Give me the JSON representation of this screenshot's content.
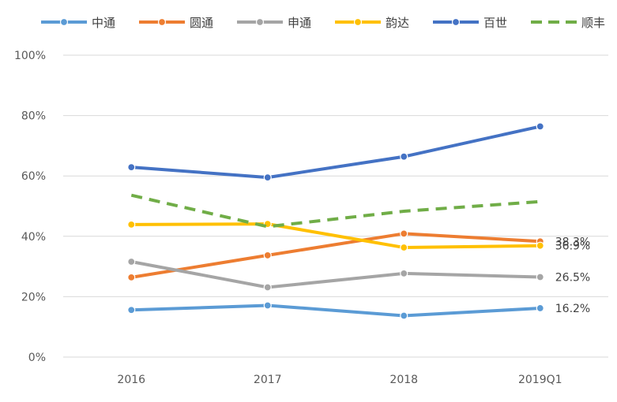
{
  "chart_data": {
    "type": "line",
    "title": "",
    "xlabel": "",
    "ylabel": "",
    "categories": [
      "2016",
      "2017",
      "2018",
      "2019Q1"
    ],
    "y_ticks": [
      "0%",
      "20%",
      "40%",
      "60%",
      "80%",
      "100%"
    ],
    "ylim": [
      0,
      100
    ],
    "grid": true,
    "legend_position": "top",
    "series": [
      {
        "name": "中通",
        "values": [
          15.6,
          17.1,
          13.7,
          16.2
        ],
        "color": "#5B9BD5",
        "dashed": false,
        "markers": true,
        "end_label": "16.2%"
      },
      {
        "name": "圆通",
        "values": [
          26.4,
          33.7,
          40.9,
          38.3
        ],
        "color": "#ED7D31",
        "dashed": false,
        "markers": true,
        "end_label": "38.3%"
      },
      {
        "name": "申通",
        "values": [
          31.6,
          23.1,
          27.7,
          26.5
        ],
        "color": "#A5A5A5",
        "dashed": false,
        "markers": true,
        "end_label": "26.5%"
      },
      {
        "name": "韵达",
        "values": [
          43.9,
          44.1,
          36.3,
          36.9
        ],
        "color": "#FFC000",
        "dashed": false,
        "markers": true,
        "end_label": "36.9%"
      },
      {
        "name": "百世",
        "values": [
          62.9,
          59.5,
          66.4,
          76.4
        ],
        "color": "#4472C4",
        "dashed": false,
        "markers": true,
        "end_label": ""
      },
      {
        "name": "顺丰",
        "values": [
          53.6,
          43.2,
          48.3,
          51.5
        ],
        "color": "#70AD47",
        "dashed": true,
        "markers": false,
        "end_label": ""
      }
    ]
  }
}
